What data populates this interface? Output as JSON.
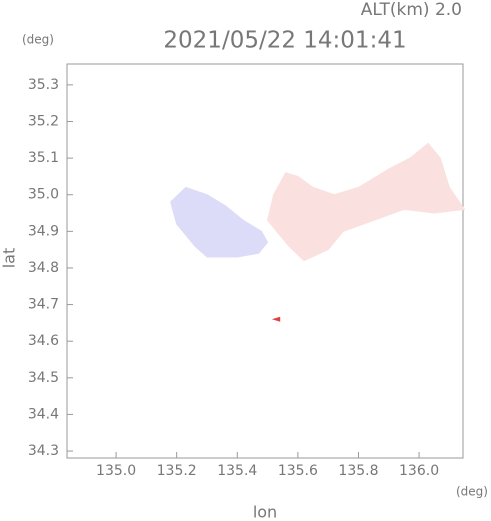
{
  "chart_data": {
    "type": "field",
    "annotation": "ALT(km) 2.0",
    "title": "2021/05/22 14:01:41",
    "y_unit": "(deg)",
    "x_unit": "(deg)",
    "xlabel": "lon",
    "ylabel": "lat",
    "xlim": [
      134.838,
      136.145
    ],
    "ylim": [
      34.281,
      35.357
    ],
    "xticks": [
      {
        "value": 135,
        "label": "135.0"
      },
      135.2,
      135.4,
      135.6,
      135.8,
      {
        "value": 136,
        "label": "136.0"
      }
    ],
    "yticks": [
      34.3,
      34.4,
      34.5,
      34.6,
      34.7,
      34.8,
      34.9,
      {
        "value": 35,
        "label": "35.0"
      },
      35.1,
      35.2,
      35.3
    ],
    "series": [
      {
        "color": "#dcdcf8",
        "x": [
          135.18,
          135.23,
          135.3,
          135.36,
          135.42,
          135.48,
          135.5,
          135.47,
          135.4,
          135.3,
          135.26,
          135.2
        ],
        "y": [
          34.98,
          35.02,
          35.0,
          34.97,
          34.93,
          34.9,
          34.87,
          34.84,
          34.83,
          34.83,
          34.86,
          34.92
        ]
      },
      {
        "color": "#fbe0e0",
        "x": [
          135.5,
          135.52,
          135.56,
          135.6,
          135.65,
          135.72,
          135.8,
          135.9,
          135.97,
          136.03,
          136.07,
          136.1,
          136.15,
          136.05,
          135.95,
          135.85,
          135.75,
          135.7,
          135.62,
          135.57
        ],
        "y": [
          34.93,
          35.0,
          35.06,
          35.05,
          35.02,
          35.0,
          35.02,
          35.07,
          35.1,
          35.14,
          35.1,
          35.02,
          34.96,
          34.95,
          34.96,
          34.93,
          34.9,
          34.85,
          34.82,
          34.86
        ]
      },
      {
        "color": "#e04040",
        "x": [
          135.52,
          135.54,
          135.54
        ],
        "y": [
          34.66,
          34.665,
          34.655
        ]
      }
    ]
  }
}
